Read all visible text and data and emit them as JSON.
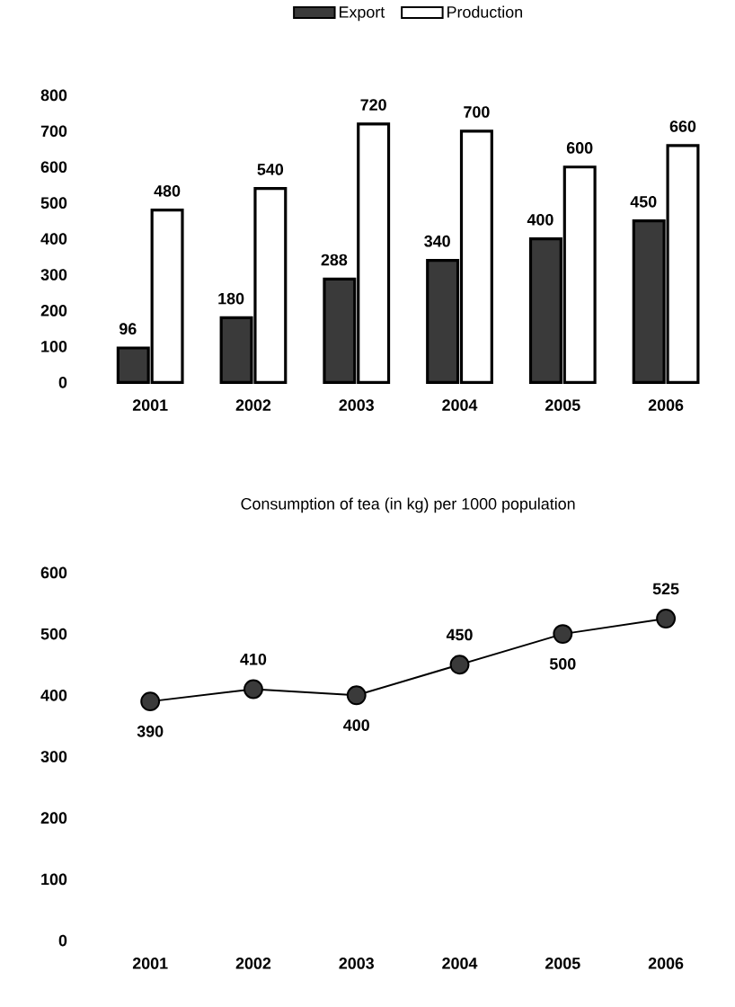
{
  "chart_data": [
    {
      "type": "bar",
      "categories": [
        "2001",
        "2002",
        "2003",
        "2004",
        "2005",
        "2006"
      ],
      "series": [
        {
          "name": "Export",
          "color": "#3a3a3a",
          "values": [
            96,
            180,
            288,
            340,
            400,
            450
          ]
        },
        {
          "name": "Production",
          "color": "#ffffff",
          "values": [
            480,
            540,
            720,
            700,
            600,
            660
          ]
        }
      ],
      "ylim": [
        0,
        800
      ],
      "yticks": [
        0,
        100,
        200,
        300,
        400,
        500,
        600,
        700,
        800
      ],
      "legend": "top",
      "data_labels": true
    },
    {
      "type": "line",
      "title": "Consumption of tea (in kg) per 1000 population",
      "categories": [
        "2001",
        "2002",
        "2003",
        "2004",
        "2005",
        "2006"
      ],
      "series": [
        {
          "color": "#3a3a3a",
          "values": [
            390,
            410,
            400,
            450,
            500,
            525
          ]
        }
      ],
      "ylim": [
        0,
        600
      ],
      "yticks": [
        0,
        100,
        200,
        300,
        400,
        500,
        600
      ],
      "marker": "circle",
      "line_style": "solid",
      "data_labels": true
    }
  ]
}
